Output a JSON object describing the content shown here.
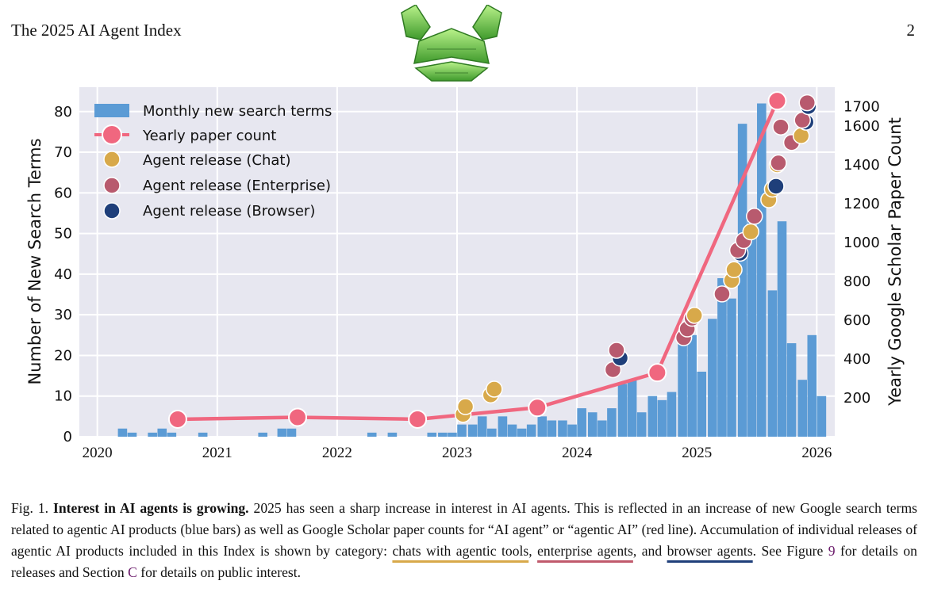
{
  "header": {
    "title": "The 2025 AI Agent Index",
    "page_number": "2"
  },
  "chart_data": {
    "type": "bar",
    "title": "",
    "ylabel": "Number of New Search Terms",
    "y2label": "Yearly Google Scholar Paper Count",
    "ylim": [
      0,
      86
    ],
    "y2lim": [
      0,
      1800
    ],
    "xlim": [
      2019.85,
      2026.15
    ],
    "x_ticks": [
      2020,
      2021,
      2022,
      2023,
      2024,
      2025,
      2026
    ],
    "y_ticks": [
      0,
      10,
      20,
      30,
      40,
      50,
      60,
      70,
      80
    ],
    "y2_ticks": [
      200,
      400,
      600,
      800,
      1000,
      1200,
      1400,
      1600,
      1700
    ],
    "grid": true,
    "legend_position": "top-left",
    "legend": [
      "Monthly new search terms",
      "Yearly paper count",
      "Agent release (Chat)",
      "Agent release (Enterprise)",
      "Agent release (Browser)"
    ],
    "colors": {
      "bars": "#5b9bd5",
      "line": "#f0677f",
      "chat": "#d8a94a",
      "enterprise": "#b85a6e",
      "browser": "#1f3f7a"
    },
    "series": [
      {
        "name": "Monthly new search terms",
        "type": "bar",
        "x": [
          2020.21,
          2020.29,
          2020.46,
          2020.54,
          2020.62,
          2020.88,
          2021.38,
          2021.54,
          2021.62,
          2022.29,
          2022.46,
          2022.79,
          2022.88,
          2022.96,
          2023.04,
          2023.13,
          2023.21,
          2023.29,
          2023.38,
          2023.46,
          2023.54,
          2023.62,
          2023.71,
          2023.79,
          2023.88,
          2023.96,
          2024.04,
          2024.13,
          2024.21,
          2024.29,
          2024.38,
          2024.46,
          2024.54,
          2024.63,
          2024.71,
          2024.79,
          2024.88,
          2024.96,
          2025.04,
          2025.13,
          2025.21,
          2025.29,
          2025.38,
          2025.46,
          2025.54,
          2025.63,
          2025.71,
          2025.79,
          2025.88,
          2025.96,
          2026.04
        ],
        "values": [
          2,
          1,
          1,
          2,
          1,
          1,
          1,
          2,
          2,
          1,
          1,
          1,
          1,
          1,
          3,
          3,
          5,
          2,
          5,
          3,
          2,
          3,
          5,
          4,
          4,
          3,
          7,
          6,
          4,
          7,
          13,
          14,
          6,
          10,
          9,
          11,
          23,
          25,
          16,
          29,
          39,
          34,
          77,
          55,
          82,
          36,
          53,
          23,
          14,
          25,
          10
        ]
      },
      {
        "name": "Yearly paper count",
        "type": "line",
        "x": [
          2020.67,
          2021.67,
          2022.67,
          2023.67,
          2024.67,
          2025.67
        ],
        "values": [
          90,
          100,
          90,
          150,
          330,
          1730
        ]
      },
      {
        "name": "Agent release (Chat)",
        "type": "scatter",
        "x": [
          2023.05,
          2023.07,
          2023.28,
          2023.31,
          2024.98,
          2025.29,
          2025.31,
          2025.45,
          2025.6,
          2025.63,
          2025.67,
          2025.87
        ],
        "values": [
          115,
          155,
          215,
          245,
          625,
          805,
          860,
          1055,
          1220,
          1275,
          1400,
          1550
        ]
      },
      {
        "name": "Agent release (Enterprise)",
        "type": "scatter",
        "x": [
          2024.3,
          2024.33,
          2024.89,
          2024.92,
          2024.96,
          2025.21,
          2025.34,
          2025.39,
          2025.48,
          2025.68,
          2025.7,
          2025.79,
          2025.88,
          2025.92
        ],
        "values": [
          345,
          445,
          510,
          555,
          610,
          735,
          960,
          1010,
          1135,
          1410,
          1595,
          1515,
          1630,
          1720
        ]
      },
      {
        "name": "Agent release (Browser)",
        "type": "scatter",
        "x": [
          2024.36,
          2025.36,
          2025.66,
          2025.91,
          2025.93
        ],
        "values": [
          405,
          945,
          1290,
          1620,
          1700
        ]
      }
    ]
  },
  "caption": {
    "fig_label": "Fig. 1.",
    "bold_title": "Interest in AI agents is growing.",
    "text_1": "2025 has seen a sharp increase in interest in AI agents. This is reflected in an increase of new Google search terms related to agentic AI products (blue bars) as well as Google Scholar paper counts for “AI agent” or “agentic AI” (red line). Accumulation of individual releases of agentic AI products included in this Index is shown by category:",
    "chat_link": "chats with agentic tools",
    "sep_1": ",",
    "enterprise_link": "enterprise agents",
    "sep_2": ", and",
    "browser_link": "browser agents",
    "text_2": ". See Figure",
    "figure_ref": "9",
    "text_3": "for details on releases and Section",
    "section_ref": "C",
    "text_4": "for details on public interest."
  }
}
